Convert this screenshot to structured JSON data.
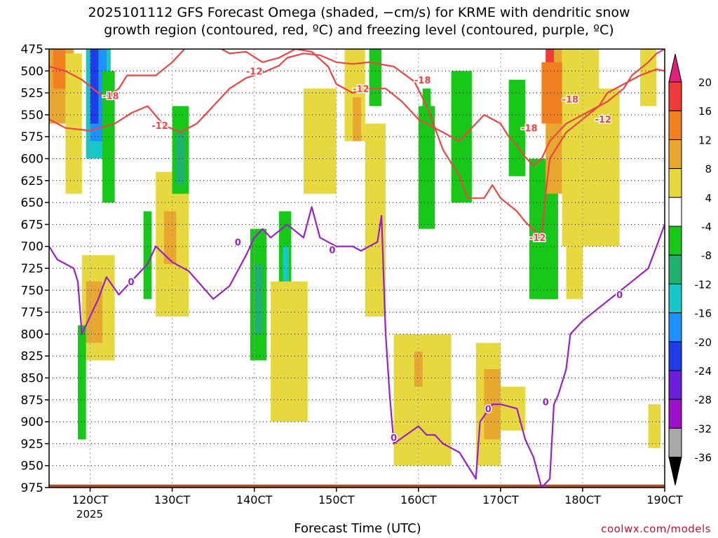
{
  "title_line1": "2025101112 GFS Forecast Omega (shaded, −cm/s) for KRME with dendritic snow",
  "title_line2": "growth region (contoured, red, ºC) and freezing level (contoured, purple, ºC)",
  "xlabel": "Forecast Time (UTC)",
  "credit": "coolwx.com/models",
  "year_label": "2025",
  "colors": {
    "red_contour": "#ef4444",
    "purple_contour": "#9b1fc7",
    "ground": "#a0522d",
    "grid": "#888888"
  },
  "chart_data": {
    "type": "heatmap",
    "title": "2025101112 GFS Forecast Omega (shaded, −cm/s) for KRME with dendritic snow growth region (contoured, red, ºC) and freezing level (contoured, purple, ºC)",
    "xlabel": "Forecast Time (UTC)",
    "ylabel": "",
    "x_ticks": [
      "120CT",
      "130CT",
      "140CT",
      "150CT",
      "160CT",
      "170CT",
      "180CT",
      "190CT"
    ],
    "x_tick_days": [
      12,
      13,
      14,
      15,
      16,
      17,
      18,
      19
    ],
    "xlim_days": [
      11.5,
      19.0
    ],
    "y_ticks": [
      475,
      500,
      525,
      550,
      575,
      600,
      625,
      650,
      675,
      700,
      725,
      750,
      775,
      800,
      825,
      850,
      875,
      900,
      925,
      950,
      975
    ],
    "ylim_hpa": [
      975,
      475
    ],
    "grid": true,
    "colorbar": {
      "labels": [
        20,
        16,
        12,
        8,
        4,
        -4,
        -8,
        -12,
        -16,
        -20,
        -24,
        -28,
        -32,
        -36
      ],
      "bins": [
        {
          "range": "16 to 20",
          "color": "#f03a3a"
        },
        {
          "range": "12 to 16",
          "color": "#f08020"
        },
        {
          "range": "8 to 12",
          "color": "#e8a830"
        },
        {
          "range": "4 to 8",
          "color": "#e8d840"
        },
        {
          "range": "-4 to 4",
          "color": "#ffffff"
        },
        {
          "range": "-8 to -4",
          "color": "#18c818"
        },
        {
          "range": "-12 to -8",
          "color": "#20b070"
        },
        {
          "range": "-16 to -12",
          "color": "#18c8c8"
        },
        {
          "range": "-20 to -16",
          "color": "#1e90ff"
        },
        {
          "range": "-24 to -20",
          "color": "#1e3ce8"
        },
        {
          "range": "-28 to -24",
          "color": "#6a1ed8"
        },
        {
          "range": "-32 to -28",
          "color": "#9b10c8"
        },
        {
          "range": "-36 to -32",
          "color": "#a8a8a8"
        }
      ],
      "top_color": "#e0207a",
      "bottom_color": "#000000"
    },
    "series": [
      {
        "name": "-12",
        "color": "#ef4444",
        "points": [
          [
            11.5,
            555
          ],
          [
            11.7,
            565
          ],
          [
            12.0,
            568
          ],
          [
            12.3,
            560
          ],
          [
            12.5,
            548
          ],
          [
            12.7,
            540
          ],
          [
            12.9,
            562
          ],
          [
            13.1,
            570
          ],
          [
            13.3,
            560
          ],
          [
            13.5,
            540
          ],
          [
            13.7,
            520
          ],
          [
            13.9,
            508
          ],
          [
            14.1,
            502
          ],
          [
            14.3,
            494
          ],
          [
            14.4,
            485
          ],
          [
            14.6,
            480
          ],
          [
            14.8,
            482
          ],
          [
            15.0,
            490
          ],
          [
            15.2,
            492
          ],
          [
            15.4,
            490
          ],
          [
            15.7,
            495
          ],
          [
            15.95,
            512
          ],
          [
            16.1,
            540
          ],
          [
            16.3,
            590
          ],
          [
            16.5,
            620
          ],
          [
            16.6,
            645
          ],
          [
            16.8,
            645
          ],
          [
            16.9,
            630
          ],
          [
            17.0,
            645
          ],
          [
            17.2,
            660
          ],
          [
            17.3,
            672
          ],
          [
            17.5,
            690
          ],
          [
            17.55,
            640
          ],
          [
            17.6,
            600
          ],
          [
            17.7,
            585
          ],
          [
            17.8,
            570
          ],
          [
            18.0,
            555
          ],
          [
            18.2,
            540
          ],
          [
            18.3,
            525
          ],
          [
            18.5,
            515
          ],
          [
            18.7,
            505
          ],
          [
            18.9,
            498
          ],
          [
            19.0,
            500
          ]
        ]
      },
      {
        "name": "-18",
        "color": "#ef4444",
        "points": [
          [
            11.5,
            495
          ],
          [
            11.7,
            500
          ],
          [
            11.9,
            510
          ],
          [
            12.1,
            525
          ],
          [
            12.2,
            530
          ],
          [
            12.35,
            520
          ],
          [
            12.45,
            505
          ],
          [
            12.6,
            505
          ],
          [
            12.8,
            505
          ],
          [
            13.0,
            490
          ],
          [
            13.1,
            480
          ],
          [
            13.2,
            470
          ],
          [
            13.5,
            470
          ],
          [
            13.7,
            480
          ],
          [
            13.9,
            478
          ],
          [
            14.1,
            490
          ],
          [
            14.3,
            485
          ],
          [
            14.5,
            475
          ],
          [
            14.7,
            478
          ],
          [
            14.9,
            495
          ],
          [
            15.0,
            515
          ],
          [
            15.2,
            525
          ],
          [
            15.4,
            520
          ],
          [
            15.6,
            520
          ],
          [
            15.8,
            535
          ],
          [
            16.0,
            555
          ],
          [
            16.2,
            565
          ],
          [
            16.4,
            575
          ],
          [
            16.5,
            580
          ],
          [
            16.7,
            560
          ],
          [
            16.8,
            550
          ],
          [
            17.0,
            560
          ],
          [
            17.1,
            575
          ],
          [
            17.2,
            585
          ],
          [
            17.3,
            598
          ],
          [
            17.4,
            608
          ],
          [
            17.5,
            600
          ],
          [
            17.6,
            580
          ],
          [
            17.7,
            570
          ],
          [
            17.8,
            560
          ],
          [
            17.9,
            555
          ],
          [
            18.1,
            545
          ],
          [
            18.3,
            535
          ],
          [
            18.5,
            520
          ],
          [
            18.6,
            505
          ],
          [
            18.8,
            490
          ],
          [
            18.9,
            480
          ],
          [
            19.0,
            475
          ]
        ]
      },
      {
        "name": "0",
        "color": "#9b1fc7",
        "points": [
          [
            11.5,
            700
          ],
          [
            11.6,
            715
          ],
          [
            11.8,
            725
          ],
          [
            11.85,
            740
          ],
          [
            11.9,
            800
          ],
          [
            12.1,
            760
          ],
          [
            12.2,
            735
          ],
          [
            12.35,
            755
          ],
          [
            12.5,
            740
          ],
          [
            12.7,
            720
          ],
          [
            12.8,
            700
          ],
          [
            13.0,
            718
          ],
          [
            13.2,
            728
          ],
          [
            13.5,
            760
          ],
          [
            13.7,
            745
          ],
          [
            13.9,
            710
          ],
          [
            14.0,
            690
          ],
          [
            14.1,
            680
          ],
          [
            14.2,
            690
          ],
          [
            14.4,
            675
          ],
          [
            14.6,
            690
          ],
          [
            14.7,
            655
          ],
          [
            14.8,
            690
          ],
          [
            15.0,
            700
          ],
          [
            15.2,
            700
          ],
          [
            15.3,
            705
          ],
          [
            15.5,
            695
          ],
          [
            15.55,
            665
          ],
          [
            15.6,
            800
          ],
          [
            15.65,
            870
          ],
          [
            15.7,
            925
          ],
          [
            15.85,
            915
          ],
          [
            16.0,
            905
          ],
          [
            16.1,
            915
          ],
          [
            16.2,
            915
          ],
          [
            16.3,
            925
          ],
          [
            16.5,
            935
          ],
          [
            16.7,
            965
          ],
          [
            16.75,
            900
          ],
          [
            16.9,
            880
          ],
          [
            17.0,
            880
          ],
          [
            17.2,
            885
          ],
          [
            17.3,
            920
          ],
          [
            17.4,
            940
          ],
          [
            17.5,
            975
          ],
          [
            17.6,
            965
          ],
          [
            17.65,
            880
          ],
          [
            17.7,
            870
          ],
          [
            17.8,
            840
          ],
          [
            17.85,
            800
          ],
          [
            18.0,
            785
          ],
          [
            18.2,
            770
          ],
          [
            18.4,
            755
          ],
          [
            18.6,
            740
          ],
          [
            18.8,
            725
          ],
          [
            18.9,
            700
          ],
          [
            19.0,
            675
          ]
        ]
      }
    ],
    "contour_labels": [
      {
        "text": "-18",
        "x": 12.25,
        "y": 528
      },
      {
        "text": "-12",
        "x": 12.85,
        "y": 562
      },
      {
        "text": "-12",
        "x": 14.0,
        "y": 500
      },
      {
        "text": "-12",
        "x": 15.3,
        "y": 520
      },
      {
        "text": "-18",
        "x": 16.05,
        "y": 510
      },
      {
        "text": "-18",
        "x": 17.35,
        "y": 565
      },
      {
        "text": "-18",
        "x": 17.85,
        "y": 532
      },
      {
        "text": "-12",
        "x": 18.25,
        "y": 555
      },
      {
        "text": "-12",
        "x": 17.45,
        "y": 690
      },
      {
        "text": "0",
        "x": 12.5,
        "y": 740
      },
      {
        "text": "0",
        "x": 13.8,
        "y": 695
      },
      {
        "text": "0",
        "x": 14.95,
        "y": 704
      },
      {
        "text": "0",
        "x": 15.7,
        "y": 918
      },
      {
        "text": "0",
        "x": 16.85,
        "y": 885
      },
      {
        "text": "0",
        "x": 17.55,
        "y": 877
      },
      {
        "text": "0",
        "x": 18.45,
        "y": 755
      }
    ],
    "shaded_regions": [
      {
        "x0": 11.5,
        "x1": 11.8,
        "y0": 475,
        "y1": 560,
        "color": "#e8a830"
      },
      {
        "x0": 11.55,
        "x1": 11.7,
        "y0": 475,
        "y1": 520,
        "color": "#f08020"
      },
      {
        "x0": 11.7,
        "x1": 11.9,
        "y0": 480,
        "y1": 640,
        "color": "#e8d840"
      },
      {
        "x0": 11.95,
        "x1": 12.25,
        "y0": 475,
        "y1": 600,
        "color": "#18c8c8"
      },
      {
        "x0": 12.0,
        "x1": 12.2,
        "y0": 475,
        "y1": 580,
        "color": "#1e90ff"
      },
      {
        "x0": 12.0,
        "x1": 12.1,
        "y0": 475,
        "y1": 560,
        "color": "#1e3ce8"
      },
      {
        "x0": 12.15,
        "x1": 12.3,
        "y0": 500,
        "y1": 650,
        "color": "#18c818"
      },
      {
        "x0": 11.9,
        "x1": 12.3,
        "y0": 710,
        "y1": 830,
        "color": "#e8d840"
      },
      {
        "x0": 11.95,
        "x1": 12.15,
        "y0": 740,
        "y1": 810,
        "color": "#e8a830"
      },
      {
        "x0": 11.85,
        "x1": 11.95,
        "y0": 790,
        "y1": 920,
        "color": "#18c818"
      },
      {
        "x0": 12.8,
        "x1": 13.2,
        "y0": 615,
        "y1": 780,
        "color": "#e8d840"
      },
      {
        "x0": 12.9,
        "x1": 13.05,
        "y0": 660,
        "y1": 720,
        "color": "#e8a830"
      },
      {
        "x0": 13.0,
        "x1": 13.2,
        "y0": 540,
        "y1": 640,
        "color": "#18c818"
      },
      {
        "x0": 13.05,
        "x1": 13.15,
        "y0": 570,
        "y1": 630,
        "color": "#20b070"
      },
      {
        "x0": 12.65,
        "x1": 12.75,
        "y0": 660,
        "y1": 760,
        "color": "#18c818"
      },
      {
        "x0": 13.95,
        "x1": 14.15,
        "y0": 680,
        "y1": 830,
        "color": "#18c818"
      },
      {
        "x0": 14.0,
        "x1": 14.1,
        "y0": 720,
        "y1": 800,
        "color": "#20b070"
      },
      {
        "x0": 14.3,
        "x1": 14.45,
        "y0": 660,
        "y1": 840,
        "color": "#18c818"
      },
      {
        "x0": 14.35,
        "x1": 14.42,
        "y0": 700,
        "y1": 800,
        "color": "#18c8c8"
      },
      {
        "x0": 14.2,
        "x1": 14.65,
        "y0": 740,
        "y1": 900,
        "color": "#e8d840"
      },
      {
        "x0": 14.6,
        "x1": 15.0,
        "y0": 520,
        "y1": 640,
        "color": "#e8d840"
      },
      {
        "x0": 15.1,
        "x1": 15.35,
        "y0": 475,
        "y1": 580,
        "color": "#e8d840"
      },
      {
        "x0": 15.2,
        "x1": 15.3,
        "y0": 530,
        "y1": 580,
        "color": "#e8a830"
      },
      {
        "x0": 15.35,
        "x1": 15.6,
        "y0": 560,
        "y1": 780,
        "color": "#e8d840"
      },
      {
        "x0": 15.4,
        "x1": 15.55,
        "y0": 475,
        "y1": 540,
        "color": "#18c818"
      },
      {
        "x0": 15.7,
        "x1": 16.4,
        "y0": 800,
        "y1": 950,
        "color": "#e8d840"
      },
      {
        "x0": 15.95,
        "x1": 16.05,
        "y0": 820,
        "y1": 860,
        "color": "#e8a830"
      },
      {
        "x0": 16.0,
        "x1": 16.2,
        "y0": 540,
        "y1": 680,
        "color": "#18c818"
      },
      {
        "x0": 16.05,
        "x1": 16.15,
        "y0": 520,
        "y1": 600,
        "color": "#18c818"
      },
      {
        "x0": 16.4,
        "x1": 16.65,
        "y0": 500,
        "y1": 650,
        "color": "#18c818"
      },
      {
        "x0": 16.7,
        "x1": 17.0,
        "y0": 810,
        "y1": 950,
        "color": "#e8d840"
      },
      {
        "x0": 16.8,
        "x1": 17.0,
        "y0": 840,
        "y1": 920,
        "color": "#e8a830"
      },
      {
        "x0": 17.0,
        "x1": 17.3,
        "y0": 860,
        "y1": 910,
        "color": "#e8d840"
      },
      {
        "x0": 17.1,
        "x1": 17.3,
        "y0": 510,
        "y1": 620,
        "color": "#18c818"
      },
      {
        "x0": 17.35,
        "x1": 17.7,
        "y0": 600,
        "y1": 760,
        "color": "#18c818"
      },
      {
        "x0": 17.5,
        "x1": 17.7,
        "y0": 640,
        "y1": 760,
        "color": "#18c818"
      },
      {
        "x0": 17.55,
        "x1": 17.75,
        "y0": 475,
        "y1": 640,
        "color": "#e8a830"
      },
      {
        "x0": 17.55,
        "x1": 17.65,
        "y0": 475,
        "y1": 500,
        "color": "#f03a3a"
      },
      {
        "x0": 17.5,
        "x1": 17.8,
        "y0": 490,
        "y1": 560,
        "color": "#f08020"
      },
      {
        "x0": 17.75,
        "x1": 18.2,
        "y0": 475,
        "y1": 700,
        "color": "#e8d840"
      },
      {
        "x0": 17.8,
        "x1": 18.0,
        "y0": 580,
        "y1": 760,
        "color": "#e8d840"
      },
      {
        "x0": 18.1,
        "x1": 18.45,
        "y0": 520,
        "y1": 700,
        "color": "#e8d840"
      },
      {
        "x0": 18.7,
        "x1": 18.9,
        "y0": 475,
        "y1": 540,
        "color": "#e8d840"
      },
      {
        "x0": 18.8,
        "x1": 18.95,
        "y0": 880,
        "y1": 930,
        "color": "#e8d840"
      }
    ],
    "ground_level_hpa": 970
  }
}
